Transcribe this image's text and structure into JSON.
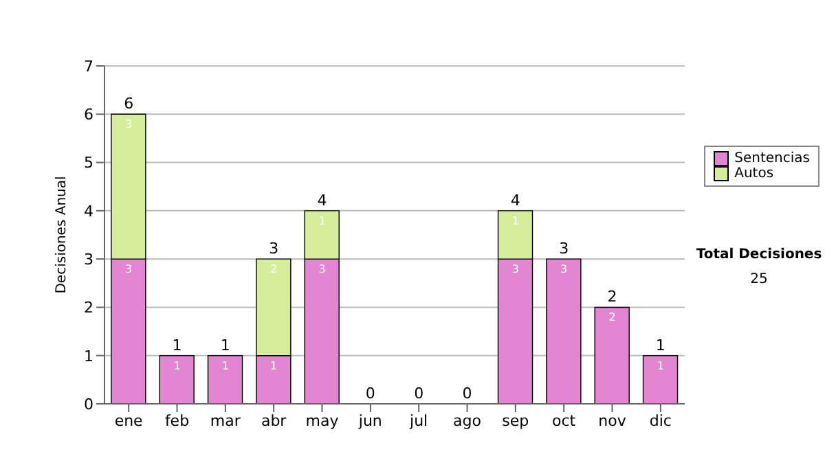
{
  "chart_data": {
    "type": "bar",
    "stacked": true,
    "ylabel": "Decisiones Anual",
    "categories": [
      "ene",
      "feb",
      "mar",
      "abr",
      "may",
      "jun",
      "jul",
      "ago",
      "sep",
      "oct",
      "nov",
      "dic"
    ],
    "series": [
      {
        "name": "Sentencias",
        "color": "#e386d2",
        "values": [
          3,
          1,
          1,
          1,
          3,
          0,
          0,
          0,
          3,
          3,
          2,
          1
        ],
        "value_labels": [
          "3",
          "1",
          "1",
          "1",
          "3",
          null,
          null,
          null,
          "3",
          "3",
          "2",
          "1"
        ]
      },
      {
        "name": "Autos",
        "color": "#d6ee9c",
        "values": [
          3,
          0,
          0,
          2,
          1,
          0,
          0,
          0,
          1,
          0,
          0,
          0
        ],
        "value_labels": [
          "3",
          null,
          null,
          "2",
          "1",
          null,
          null,
          null,
          "1",
          null,
          null,
          null
        ]
      }
    ],
    "totals": [
      "6",
      "1",
      "1",
      "3",
      "4",
      "0",
      "0",
      "0",
      "4",
      "3",
      "2",
      "1"
    ],
    "ylim": [
      0,
      7
    ],
    "yticks": [
      0,
      1,
      2,
      3,
      4,
      5,
      6,
      7
    ],
    "grid": "y",
    "legend": "right",
    "annotations": [
      "Total Decisiones",
      "25"
    ]
  }
}
